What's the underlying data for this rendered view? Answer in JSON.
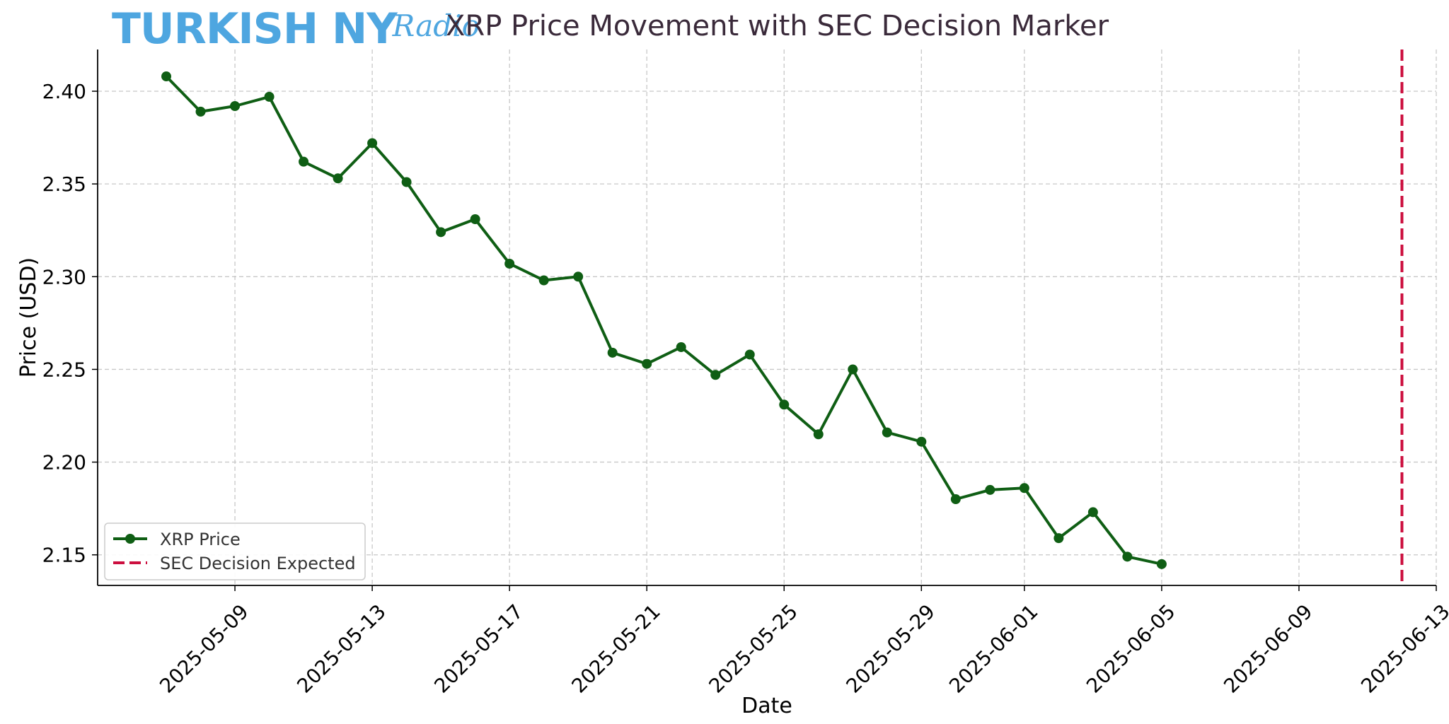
{
  "logo": {
    "main": "TURKISH NY",
    "script": "Radio"
  },
  "colors": {
    "line": "#0f5e14",
    "marker": "#cc0f3f",
    "grid": "#c8c8c8",
    "logo": "#4ea6e0"
  },
  "chart_data": {
    "type": "line",
    "title": "XRP Price Movement with SEC Decision Marker",
    "xlabel": "Date",
    "ylabel": "Price (USD)",
    "xlim": [
      "2025-05-05",
      "2025-06-13"
    ],
    "ylim": [
      2.1335,
      2.4225
    ],
    "grid": true,
    "legend_position": "bottom-left",
    "x_ticks": [
      "2025-05-09",
      "2025-05-13",
      "2025-05-17",
      "2025-05-21",
      "2025-05-25",
      "2025-05-29",
      "2025-06-01",
      "2025-06-05",
      "2025-06-09",
      "2025-06-13"
    ],
    "y_ticks": [
      "2.15",
      "2.20",
      "2.25",
      "2.30",
      "2.35",
      "2.40"
    ],
    "series": [
      {
        "name": "XRP Price",
        "style": "line-with-markers",
        "x": [
          "2025-05-07",
          "2025-05-08",
          "2025-05-09",
          "2025-05-10",
          "2025-05-11",
          "2025-05-12",
          "2025-05-13",
          "2025-05-14",
          "2025-05-15",
          "2025-05-16",
          "2025-05-17",
          "2025-05-18",
          "2025-05-19",
          "2025-05-20",
          "2025-05-21",
          "2025-05-22",
          "2025-05-23",
          "2025-05-24",
          "2025-05-25",
          "2025-05-26",
          "2025-05-27",
          "2025-05-28",
          "2025-05-29",
          "2025-05-30",
          "2025-05-31",
          "2025-06-01",
          "2025-06-02",
          "2025-06-03",
          "2025-06-04",
          "2025-06-05"
        ],
        "values": [
          2.408,
          2.389,
          2.392,
          2.397,
          2.362,
          2.353,
          2.372,
          2.351,
          2.324,
          2.331,
          2.307,
          2.298,
          2.3,
          2.259,
          2.253,
          2.262,
          2.247,
          2.258,
          2.231,
          2.215,
          2.25,
          2.216,
          2.211,
          2.18,
          2.185,
          2.186,
          2.159,
          2.173,
          2.149,
          2.145
        ]
      }
    ],
    "markers": [
      {
        "name": "SEC Decision Expected",
        "x": "2025-06-12",
        "style": "dashed-vertical"
      }
    ]
  }
}
